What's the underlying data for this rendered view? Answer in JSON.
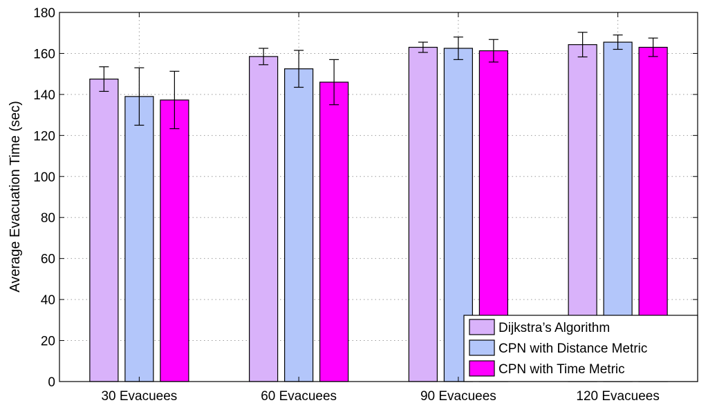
{
  "chart_data": {
    "type": "bar",
    "title": "",
    "xlabel": "",
    "ylabel": "Average Evacuation Time (sec)",
    "ylim": [
      0,
      180
    ],
    "yticks": [
      0,
      20,
      40,
      60,
      80,
      100,
      120,
      140,
      160,
      180
    ],
    "grid": true,
    "legend_position": "bottom-right",
    "categories": [
      "30 Evacuees",
      "60 Evacuees",
      "90 Evacuees",
      "120 Evacuees"
    ],
    "series": [
      {
        "name": "Dijkstra’s Algorithm",
        "color": "#d9b2fa",
        "values": [
          147.5,
          158.5,
          163,
          164.3
        ],
        "errors": [
          6,
          4,
          2.5,
          6
        ]
      },
      {
        "name": "CPN with Distance Metric",
        "color": "#b3c6fa",
        "values": [
          139,
          152.5,
          162.5,
          165.5
        ],
        "errors": [
          14,
          9,
          5.5,
          3.5
        ]
      },
      {
        "name": "CPN with Time Metric",
        "color": "#ff00ff",
        "values": [
          137.3,
          146,
          161.3,
          163
        ],
        "errors": [
          14,
          11,
          5.5,
          4.5
        ]
      }
    ]
  }
}
